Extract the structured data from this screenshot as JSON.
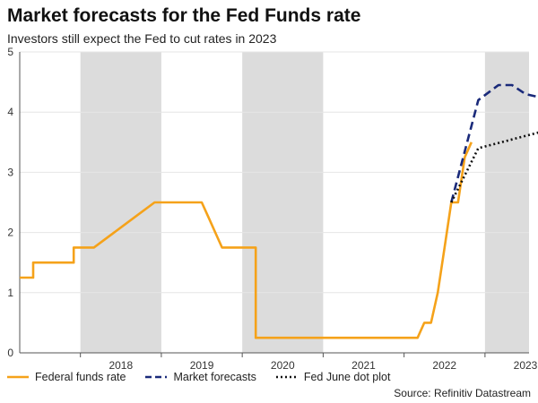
{
  "title": "Market forecasts for the Fed Funds rate",
  "subtitle": "Investors still expect the Fed to cut rates in 2023",
  "source": "Source: Refinitiv Datastream",
  "colors": {
    "fed_funds": "#f5a21a",
    "market": "#1a2a7a",
    "dot_plot": "#111111",
    "shade": "#dcdcdc",
    "grid": "#e6e6e6"
  },
  "chart_data": {
    "type": "line",
    "title": "Market forecasts for the Fed Funds rate",
    "ylim": [
      0,
      5
    ],
    "y_ticks": [
      "0",
      "1",
      "2",
      "3",
      "4",
      "5"
    ],
    "x_tick_labels": [
      "2018",
      "2019",
      "2020",
      "2021",
      "2022",
      "2023"
    ],
    "shaded_years": [
      "2018",
      "2020",
      "2023"
    ],
    "grid": true,
    "legend_position": "bottom",
    "series": [
      {
        "name": "Federal funds rate",
        "style": "solid",
        "x": [
          "2017-04",
          "2017-06",
          "2017-06",
          "2017-09",
          "2017-12",
          "2017-12",
          "2018-03",
          "2018-03",
          "2018-06",
          "2018-06",
          "2018-09",
          "2018-09",
          "2018-12",
          "2018-12",
          "2019-07",
          "2019-08",
          "2019-09",
          "2019-10",
          "2019-11",
          "2020-03",
          "2020-03",
          "2022-03",
          "2022-04",
          "2022-05",
          "2022-06",
          "2022-07",
          "2022-08",
          "2022-09",
          "2022-10",
          "2022-11"
        ],
        "y": [
          1.25,
          1.25,
          1.5,
          1.5,
          1.5,
          1.75,
          1.75,
          1.75,
          2.0,
          2.0,
          2.25,
          2.25,
          2.5,
          2.5,
          2.5,
          2.25,
          2.0,
          1.75,
          1.75,
          1.75,
          0.25,
          0.25,
          0.5,
          0.5,
          1.0,
          1.75,
          2.5,
          2.5,
          3.25,
          3.5
        ]
      },
      {
        "name": "Market forecasts",
        "style": "dashed",
        "x": [
          "2022-08",
          "2022-12",
          "2023-03",
          "2023-05",
          "2023-07",
          "2023-09"
        ],
        "y": [
          2.5,
          4.2,
          4.45,
          4.45,
          4.3,
          4.25
        ]
      },
      {
        "name": "Fed June dot plot",
        "style": "dotted",
        "x": [
          "2022-08",
          "2022-12",
          "2023-12"
        ],
        "y": [
          2.5,
          3.4,
          3.75
        ]
      }
    ]
  }
}
